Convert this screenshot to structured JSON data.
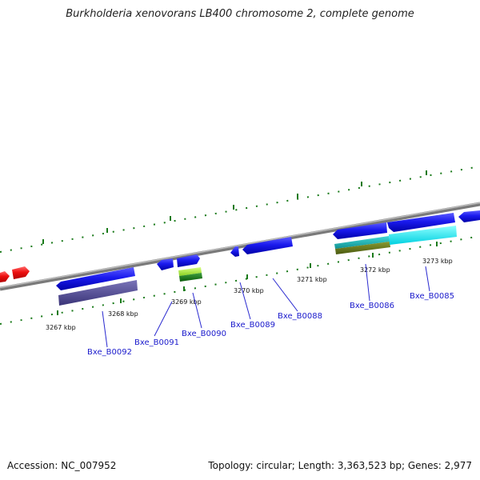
{
  "title": "Burkholderia xenovorans LB400 chromosome 2, complete genome",
  "footer": {
    "accession": "Accession: NC_007952",
    "summary": "Topology: circular; Length: 3,363,523 bp; Genes: 2,977"
  },
  "scale_labels": [
    "3267 kbp",
    "3268 kbp",
    "3269 kbp",
    "3270 kbp",
    "3271 kbp",
    "3272 kbp",
    "3273 kbp"
  ],
  "gene_labels": [
    "Bxe_B0092",
    "Bxe_B0091",
    "Bxe_B0090",
    "Bxe_B0089",
    "Bxe_B0088",
    "Bxe_B0086",
    "Bxe_B0085"
  ],
  "colors": {
    "gene_forward": "#1010e0",
    "gene_other": "#ee1111",
    "backbone": "#888888",
    "tick": "#1a7a1a",
    "label": "#1a1acc"
  }
}
